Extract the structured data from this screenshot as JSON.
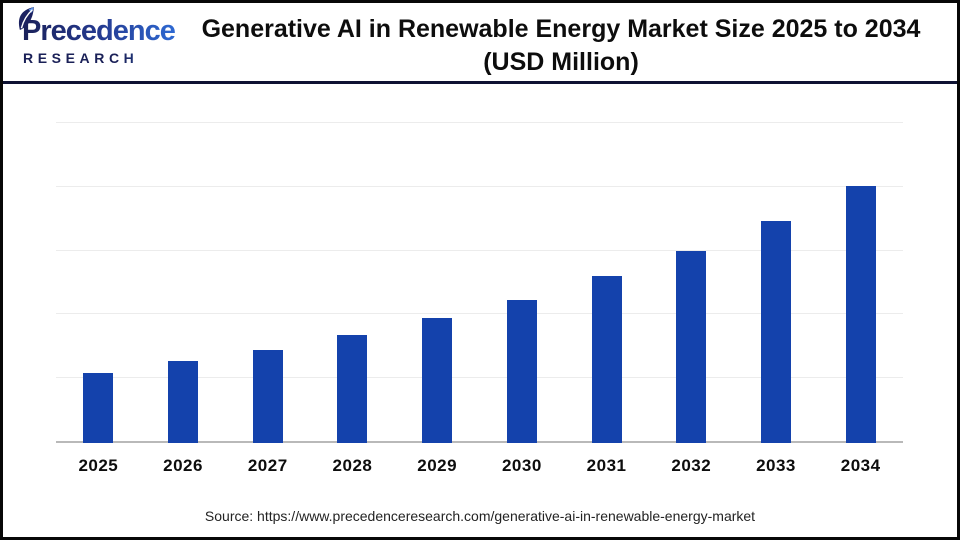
{
  "header": {
    "logo": {
      "wordmark": "Precedence",
      "subtext": "RESEARCH"
    },
    "title_line1": "Generative AI in Renewable Energy Market Size 2025 to 2034",
    "title_line2": "(USD Million)"
  },
  "footer": {
    "source": "Source: https://www.precedenceresearch.com/generative-ai-in-renewable-energy-market"
  },
  "colors": {
    "bar_blue": "#1442ac",
    "logo_navy": "#1a2057",
    "logo_blue": "#2f6fdb",
    "divider_navy": "#0e1233",
    "gridline_gray": "#ececec",
    "axis_gray": "#b9b9b9",
    "text_black": "#0d0d0d"
  },
  "chart_data": {
    "type": "bar",
    "title": "Generative AI in Renewable Energy Market Size 2025 to 2034 (USD Million)",
    "categories": [
      "2025",
      "2026",
      "2027",
      "2028",
      "2029",
      "2030",
      "2031",
      "2032",
      "2033",
      "2034"
    ],
    "values": [
      1.09,
      1.27,
      1.45,
      1.68,
      1.94,
      2.23,
      2.6,
      2.99,
      3.46,
      4.0
    ],
    "value_note": "Bar heights estimated in y-gridline units; chart shows no y-axis tick labels or data labels",
    "ylim": [
      0,
      5
    ],
    "xlabel": "",
    "ylabel": "",
    "grid": true,
    "gridline_count": 5,
    "legend": false,
    "bar_color": "#1442ac",
    "source": "Source: https://www.precedenceresearch.com/generative-ai-in-renewable-energy-market"
  }
}
